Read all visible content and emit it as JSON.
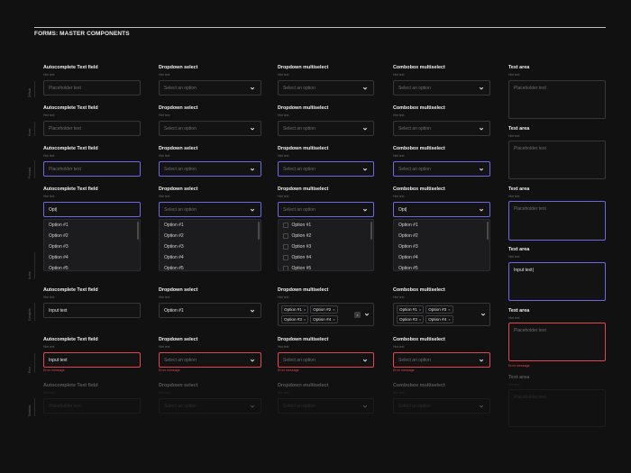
{
  "page_title": "FORMS: MASTER COMPONENTS",
  "states": [
    "Default",
    "Hover",
    "Focused",
    "Active",
    "Complete",
    "Error",
    "Disabled"
  ],
  "fields": {
    "autocomplete": {
      "label": "Autocomplete Text field",
      "placeholder": "Placeholder text"
    },
    "dropdown": {
      "label": "Dropdown select",
      "placeholder": "Select an option"
    },
    "multiselect": {
      "label": "Dropdown multiselect",
      "placeholder": "Select an option"
    },
    "combobox": {
      "label": "Combobox multiselect",
      "placeholder": "Select an option"
    },
    "textarea": {
      "label": "Text area",
      "placeholder": "Placeholder text"
    }
  },
  "hint_text": "Hint text",
  "active_typed_value": "Opt|",
  "input_value": "Input text",
  "textarea_typed_value": "Input text|",
  "error_message": "Error message",
  "options": [
    "Option #1",
    "Option #2",
    "Option #3",
    "Option #4",
    "Option #5"
  ],
  "selected_single": "Option #1",
  "chips": [
    {
      "label": "Option #1",
      "remove": "×"
    },
    {
      "label": "Option #2",
      "remove": "×"
    },
    {
      "label": "Option #3",
      "remove": "×"
    },
    {
      "label": "Option #4",
      "remove": "×"
    }
  ],
  "combobox_chips": [
    {
      "label": "Option #1",
      "remove": "×"
    },
    {
      "label": "Option #3",
      "remove": "×"
    },
    {
      "label": "Option #3",
      "remove": "×"
    },
    {
      "label": "Option #4",
      "remove": "×"
    }
  ],
  "clear_label": "×",
  "colors": {
    "background": "#111112",
    "focus": "#6d66e6",
    "error": "#e2454d",
    "border": "#37373a"
  }
}
